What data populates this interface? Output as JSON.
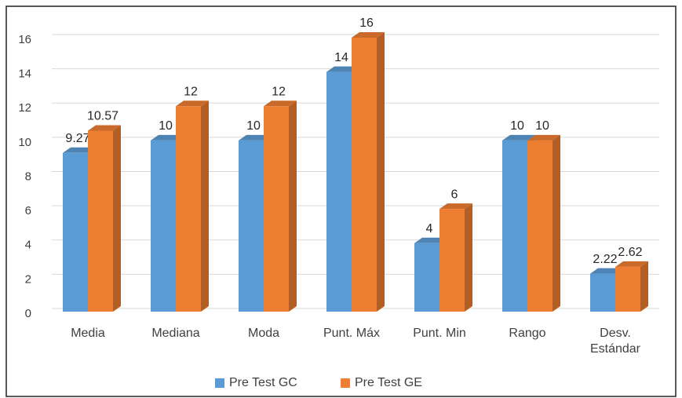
{
  "chart_data": {
    "type": "bar3d",
    "categories": [
      "Media",
      "Mediana",
      "Moda",
      "Punt. Máx",
      "Punt. Min",
      "Rango",
      "Desv. Estándar"
    ],
    "series": [
      {
        "name": "Pre Test GC",
        "color": "#5b9bd5",
        "values": [
          9.27,
          10,
          10,
          14,
          4,
          10,
          2.22
        ]
      },
      {
        "name": "Pre Test GE",
        "color": "#ed7d31",
        "values": [
          10.57,
          12,
          12,
          16,
          6,
          10,
          2.62
        ]
      }
    ],
    "ylim": [
      0,
      16
    ],
    "yticks": [
      0,
      2,
      4,
      6,
      8,
      10,
      12,
      14,
      16
    ],
    "grid": true,
    "legend": "bottom"
  }
}
